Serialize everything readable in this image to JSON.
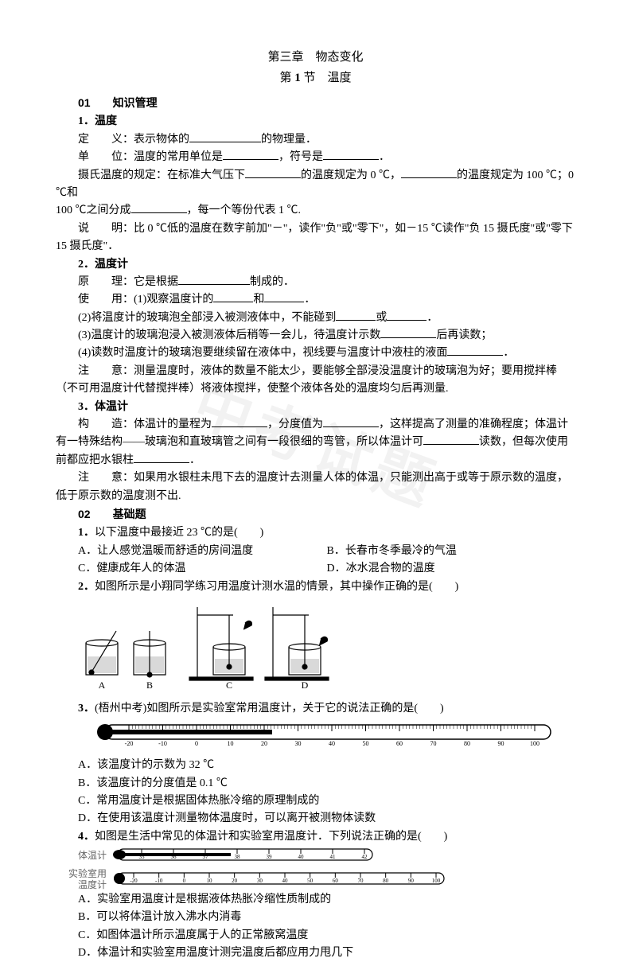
{
  "chapter_title": "第三章　物态变化",
  "section_title_prefix": "第 ",
  "section_title_num": "1",
  "section_title_suffix": " 节　温度",
  "sec01": {
    "num": "01",
    "label": "知识管理"
  },
  "k1": {
    "num": "1．",
    "title": "温度",
    "def_label": "定　　义：",
    "def_text_1": "表示物体的",
    "def_text_2": "的物理量．",
    "unit_label": "单　　位：",
    "unit_text_1": "温度的常用单位是",
    "unit_text_2": "，符号是",
    "unit_text_3": "．",
    "celsius_label": "摄氏温度的规定：",
    "celsius_1": "在标准大气压下",
    "celsius_2": "的温度规定为 0 ℃，",
    "celsius_3": "的温度规定为 100 ℃；0 ℃和",
    "celsius_4": "100 ℃之间分成",
    "celsius_5": "，每一个等份代表 1 ℃.",
    "note_label": "说　　明：",
    "note_text": "比 0 ℃低的温度在数字前加\"－\"，读作\"负\"或\"零下\"，如－15 ℃读作\"负 15 摄氏度\"或\"零下 15 摄氏度\"．"
  },
  "k2": {
    "num": "2．",
    "title": "温度计",
    "principle_label": "原　　理：",
    "principle_1": "它是根据",
    "principle_2": "制成的．",
    "use_label": "使　　用：",
    "use_1": "(1)观察温度计的",
    "use_1b": "和",
    "use_1c": "．",
    "use_2a": "(2)将温度计的玻璃泡全部浸入被测液体中，不能碰到",
    "use_2b": "或",
    "use_2c": "．",
    "use_3a": "(3)温度计的玻璃泡浸入被测液体后稍等一会儿，待温度计示数",
    "use_3b": "后再读数；",
    "use_4a": "(4)读数时温度计的玻璃泡要继续留在液体中，视线要与温度计中液柱的液面",
    "use_4b": "．",
    "note_label": "注　　意：",
    "note_text": "测量温度时，液体的数量不能太少，要能够全部浸没温度计的玻璃泡为好；要用搅拌棒（不可用温度计代替搅拌棒）将液体搅拌，使整个液体各处的温度均匀后再测量."
  },
  "k3": {
    "num": "3．",
    "title": "体温计",
    "struct_label": "构　　造：",
    "struct_1": "体温计的量程为",
    "struct_2": "，分度值为",
    "struct_3": "，这样提高了测量的准确程度；体温计有一特殊结构——玻璃泡和直玻璃管之间有一段很细的弯管，所以体温计可",
    "struct_4": "读数，但每次使用前都应把水银柱",
    "struct_5": "．",
    "note_label": "注　　意：",
    "note_text": "如果用水银柱未甩下去的温度计去测量人体的体温，只能测出高于或等于原示数的温度，低于原示数的温度测不出."
  },
  "sec02": {
    "num": "02",
    "label": "基础题"
  },
  "q1": {
    "num": "1．",
    "text": "以下温度中最接近 23 ℃的是(　　)",
    "optA": "A．让人感觉温暖而舒适的房间温度",
    "optB": "B．长春市冬季最冷的气温",
    "optC": "C．健康成年人的体温",
    "optD": "D．冰水混合物的温度"
  },
  "q2": {
    "num": "2．",
    "text": "如图所示是小翔同学练习用温度计测水温的情景，其中操作正确的是(　　)"
  },
  "q3": {
    "num": "3．",
    "text": "(梧州中考)如图所示是实验室常用温度计，关于它的说法正确的是(　　)",
    "optA": "A．该温度计的示数为 32 ℃",
    "optB": "B．该温度计的分度值是 0.1 ℃",
    "optC": "C．常用温度计是根据固体热胀冷缩的原理制成的",
    "optD": "D．在使用该温度计测量物体温度时，可以离开被测物体读数"
  },
  "q4": {
    "num": "4．",
    "text": "如图是生活中常见的体温计和实验室用温度计．下列说法正确的是(　　)",
    "label1": "体温计",
    "label2": "实验室用温度计",
    "optA": "A．实验室用温度计是根据液体热胀冷缩性质制成的",
    "optB": "B．可以将体温计放入沸水内消毒",
    "optC": "C．如图体温计所示温度属于人的正常腋窝温度",
    "optD": "D．体温计和实验室用温度计测完温度后都应用力甩几下"
  },
  "thermometer_scale": {
    "min": -20,
    "max": 100,
    "ticks": [
      -20,
      -10,
      0,
      10,
      20,
      30,
      40,
      50,
      60,
      70,
      80,
      90,
      100
    ]
  },
  "body_thermo_scale": {
    "ticks": [
      35,
      36,
      37,
      38,
      39,
      40,
      41,
      42
    ]
  },
  "lab_thermo_scale": {
    "ticks": [
      -20,
      -10,
      0,
      10,
      20,
      30,
      40,
      50,
      60,
      70,
      80,
      90,
      100
    ]
  },
  "beaker_labels": [
    "A",
    "B",
    "C",
    "D"
  ],
  "colors": {
    "text": "#000000",
    "bg": "#ffffff",
    "figure_stroke": "#000000",
    "label_gray": "#666666"
  }
}
